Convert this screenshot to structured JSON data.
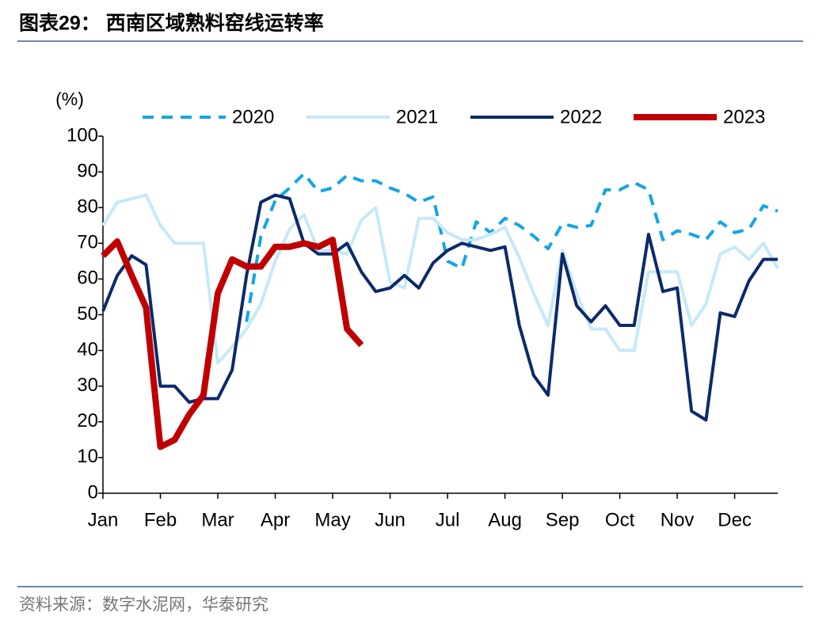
{
  "chart_data": {
    "type": "line",
    "title": "图表29： 西南区域熟料窑线运转率",
    "y_label": "(%)",
    "source": "资料来源：数字水泥网，华泰研究",
    "categories": [
      "Jan",
      null,
      null,
      null,
      "Feb",
      null,
      null,
      null,
      "Mar",
      null,
      null,
      null,
      "Apr",
      null,
      null,
      null,
      "May",
      null,
      null,
      null,
      "Jun",
      null,
      null,
      null,
      "Jul",
      null,
      null,
      null,
      "Aug",
      null,
      null,
      null,
      "Sep",
      null,
      null,
      null,
      "Oct",
      null,
      null,
      null,
      "Nov",
      null,
      null,
      null,
      "Dec",
      null,
      null,
      null
    ],
    "ylim": [
      0,
      100
    ],
    "yticks": [
      0,
      10,
      20,
      30,
      40,
      50,
      60,
      70,
      80,
      90,
      100
    ],
    "grid": false,
    "legend": "top",
    "series": [
      {
        "name": "2020",
        "color": "#13a6e3",
        "dashed": true,
        "width": 4,
        "values": [
          null,
          null,
          null,
          null,
          null,
          null,
          null,
          null,
          null,
          null,
          48,
          72,
          82,
          85.5,
          89.5,
          84.5,
          85.5,
          89,
          87.5,
          87.5,
          85.5,
          84,
          81.5,
          83,
          65,
          63,
          76,
          73,
          77,
          75,
          72,
          68.5,
          75.5,
          74.5,
          75,
          85,
          85,
          87,
          85,
          71,
          73.5,
          72.5,
          71,
          76,
          73,
          74,
          80.5,
          79
        ]
      },
      {
        "name": "2021",
        "color": "#c6e9f8",
        "dashed": false,
        "width": 4,
        "values": [
          75,
          81.5,
          82.5,
          83.5,
          75,
          70,
          70,
          70,
          36.5,
          41,
          46,
          53,
          65,
          74,
          78,
          68,
          68,
          67,
          76.5,
          80,
          59,
          57.5,
          77,
          77,
          73,
          71,
          71,
          72.5,
          74.5,
          66,
          56,
          47,
          68,
          56,
          46,
          46,
          40,
          40,
          62,
          62,
          62,
          47,
          53,
          67,
          69,
          65.5,
          70,
          63
        ]
      },
      {
        "name": "2022",
        "color": "#0c2a6a",
        "dashed": false,
        "width": 4,
        "values": [
          51,
          61,
          66.5,
          64,
          30,
          30,
          25.5,
          26.5,
          26.5,
          34.5,
          61,
          81.5,
          83.5,
          82.5,
          70,
          67,
          67,
          70,
          62,
          56.5,
          57.5,
          61,
          57.5,
          64.5,
          68,
          70,
          69,
          68,
          69,
          47,
          33,
          27.5,
          67,
          52.5,
          48,
          52.5,
          47,
          47,
          72.5,
          56.5,
          57.5,
          23,
          20.5,
          50.5,
          49.5,
          59.5,
          65.5,
          65.5
        ]
      },
      {
        "name": "2023",
        "color": "#c00000",
        "dashed": false,
        "width": 8,
        "values": [
          66.5,
          70.5,
          61,
          52,
          13,
          15,
          22,
          27.5,
          56,
          65.5,
          63.5,
          63.5,
          69,
          69,
          70,
          69,
          71,
          46,
          41.5,
          null,
          null,
          null,
          null,
          null,
          null,
          null,
          null,
          null,
          null,
          null,
          null,
          null,
          null,
          null,
          null,
          null,
          null,
          null,
          null,
          null,
          null,
          null,
          null,
          null,
          null,
          null,
          null,
          null
        ]
      }
    ]
  }
}
